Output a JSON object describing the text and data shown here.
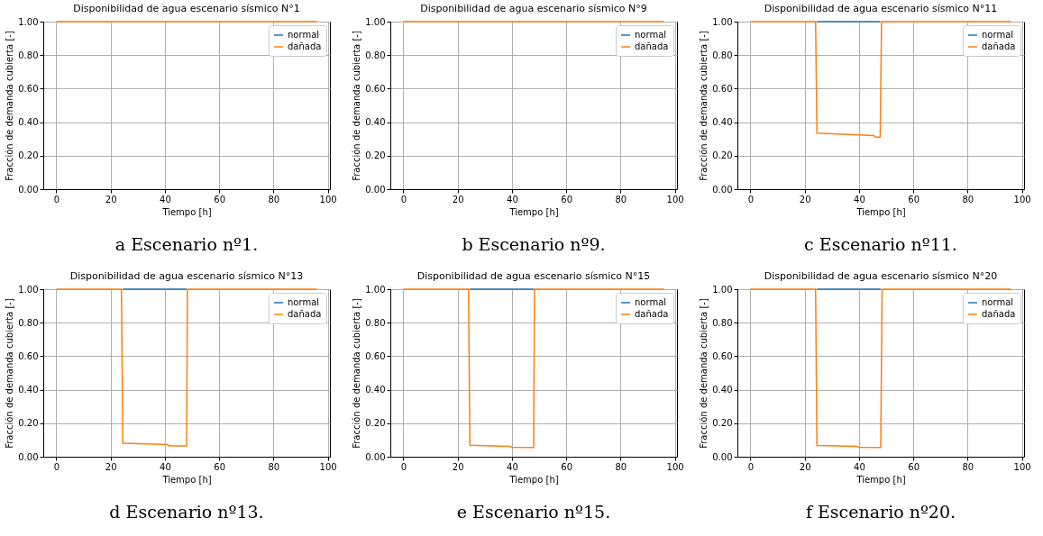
{
  "chart_data": [
    {
      "type": "line",
      "title": "Disponibilidad de agua escenario sísmico N°1",
      "xlabel": "Tiempo [h]",
      "ylabel": "Fracción de demanda cubierta [-]",
      "annotations": [
        "a Escenario nº1."
      ],
      "xlim": [
        -4.8,
        100.8
      ],
      "ylim": [
        0,
        1
      ],
      "xticks": [
        0,
        20,
        40,
        60,
        80,
        100
      ],
      "yticks": [
        {
          "value": 0,
          "label": "0.00"
        },
        {
          "value": 0.2,
          "label": "0.20"
        },
        {
          "value": 0.4,
          "label": "0.40"
        },
        {
          "value": 0.6,
          "label": "0.60"
        },
        {
          "value": 0.8,
          "label": "0.80"
        },
        {
          "value": 1,
          "label": "1.00"
        }
      ],
      "grid": true,
      "legend": "top right",
      "line_style": "solid",
      "series": [
        {
          "name": "normal",
          "color": "#1f77b4",
          "values": [
            null,
            null
          ]
        },
        {
          "name": "dañada",
          "color": "#ff7f0e",
          "x": [
            0,
            96
          ],
          "values": [
            1,
            1
          ]
        }
      ]
    },
    {
      "type": "line",
      "title": "Disponibilidad de agua escenario sísmico N°9",
      "xlabel": "Tiempo [h]",
      "ylabel": "Fracción de demanda cubierta [-]",
      "annotations": [
        "b Escenario nº9."
      ],
      "xlim": [
        -4.8,
        100.8
      ],
      "ylim": [
        0,
        1
      ],
      "xticks": [
        0,
        20,
        40,
        60,
        80,
        100
      ],
      "yticks": [
        {
          "value": 0,
          "label": "0.00"
        },
        {
          "value": 0.2,
          "label": "0.20"
        },
        {
          "value": 0.4,
          "label": "0.40"
        },
        {
          "value": 0.6,
          "label": "0.60"
        },
        {
          "value": 0.8,
          "label": "0.80"
        },
        {
          "value": 1,
          "label": "1.00"
        }
      ],
      "grid": true,
      "legend": "top right",
      "line_style": "solid",
      "series": [
        {
          "name": "normal",
          "color": "#1f77b4",
          "values": [
            null,
            null
          ]
        },
        {
          "name": "dañada",
          "color": "#ff7f0e",
          "x": [
            0,
            96
          ],
          "values": [
            1,
            1
          ]
        }
      ]
    },
    {
      "type": "line",
      "title": "Disponibilidad de agua escenario sísmico N°11",
      "xlabel": "Tiempo [h]",
      "ylabel": "Fracción de demanda cubierta [-]",
      "annotations": [
        "c Escenario nº11."
      ],
      "xlim": [
        -4.8,
        100.8
      ],
      "ylim": [
        0,
        1
      ],
      "xticks": [
        0,
        20,
        40,
        60,
        80,
        100
      ],
      "yticks": [
        {
          "value": 0,
          "label": "0.00"
        },
        {
          "value": 0.2,
          "label": "0.20"
        },
        {
          "value": 0.4,
          "label": "0.40"
        },
        {
          "value": 0.6,
          "label": "0.60"
        },
        {
          "value": 0.8,
          "label": "0.80"
        },
        {
          "value": 1,
          "label": "1.00"
        }
      ],
      "grid": true,
      "legend": "top right",
      "line_style": "solid",
      "series": [
        {
          "name": "normal",
          "color": "#1f77b4",
          "x": [
            24.5,
            47.8
          ],
          "values": [
            1,
            1
          ]
        },
        {
          "name": "dañada",
          "color": "#ff7f0e",
          "x": [
            0,
            24,
            24.5,
            45.5,
            46,
            47.8,
            48.3,
            96
          ],
          "values": [
            1,
            1,
            0.335,
            0.32,
            0.31,
            0.31,
            1,
            1
          ]
        }
      ]
    },
    {
      "type": "line",
      "title": "Disponibilidad de agua escenario sísmico N°13",
      "xlabel": "Tiempo [h]",
      "ylabel": "Fracción de demanda cubierta [-]",
      "annotations": [
        "d Escenario nº13."
      ],
      "xlim": [
        -4.8,
        100.8
      ],
      "ylim": [
        0,
        1
      ],
      "xticks": [
        0,
        20,
        40,
        60,
        80,
        100
      ],
      "yticks": [
        {
          "value": 0,
          "label": "0.00"
        },
        {
          "value": 0.2,
          "label": "0.20"
        },
        {
          "value": 0.4,
          "label": "0.40"
        },
        {
          "value": 0.6,
          "label": "0.60"
        },
        {
          "value": 0.8,
          "label": "0.80"
        },
        {
          "value": 1,
          "label": "1.00"
        }
      ],
      "grid": true,
      "legend": "top right",
      "line_style": "solid",
      "series": [
        {
          "name": "normal",
          "color": "#1f77b4",
          "x": [
            24.5,
            48
          ],
          "values": [
            1,
            1
          ]
        },
        {
          "name": "dañada",
          "color": "#ff7f0e",
          "x": [
            0,
            24,
            24.5,
            41,
            41.5,
            48,
            48.3,
            96
          ],
          "values": [
            1,
            1,
            0.08,
            0.072,
            0.065,
            0.065,
            1,
            1
          ]
        }
      ]
    },
    {
      "type": "line",
      "title": "Disponibilidad de agua escenario sísmico N°15",
      "xlabel": "Tiempo [h]",
      "ylabel": "Fracción de demanda cubierta [-]",
      "annotations": [
        "e Escenario nº15."
      ],
      "xlim": [
        -4.8,
        100.8
      ],
      "ylim": [
        0,
        1
      ],
      "xticks": [
        0,
        20,
        40,
        60,
        80,
        100
      ],
      "yticks": [
        {
          "value": 0,
          "label": "0.00"
        },
        {
          "value": 0.2,
          "label": "0.20"
        },
        {
          "value": 0.4,
          "label": "0.40"
        },
        {
          "value": 0.6,
          "label": "0.60"
        },
        {
          "value": 0.8,
          "label": "0.80"
        },
        {
          "value": 1,
          "label": "1.00"
        }
      ],
      "grid": true,
      "legend": "top right",
      "line_style": "solid",
      "series": [
        {
          "name": "normal",
          "color": "#1f77b4",
          "x": [
            24.5,
            48
          ],
          "values": [
            1,
            1
          ]
        },
        {
          "name": "dañada",
          "color": "#ff7f0e",
          "x": [
            0,
            24,
            24.5,
            39,
            40,
            48,
            48.3,
            96
          ],
          "values": [
            1,
            1,
            0.068,
            0.062,
            0.057,
            0.055,
            1,
            1
          ]
        }
      ]
    },
    {
      "type": "line",
      "title": "Disponibilidad de agua escenario sísmico N°20",
      "xlabel": "Tiempo [h]",
      "ylabel": "Fracción de demanda cubierta [-]",
      "annotations": [
        "f Escenario nº20."
      ],
      "xlim": [
        -4.8,
        100.8
      ],
      "ylim": [
        0,
        1
      ],
      "xticks": [
        0,
        20,
        40,
        60,
        80,
        100
      ],
      "yticks": [
        {
          "value": 0,
          "label": "0.00"
        },
        {
          "value": 0.2,
          "label": "0.20"
        },
        {
          "value": 0.4,
          "label": "0.40"
        },
        {
          "value": 0.6,
          "label": "0.60"
        },
        {
          "value": 0.8,
          "label": "0.80"
        },
        {
          "value": 1,
          "label": "1.00"
        }
      ],
      "grid": true,
      "legend": "top right",
      "line_style": "solid",
      "series": [
        {
          "name": "normal",
          "color": "#1f77b4",
          "x": [
            24.5,
            48
          ],
          "values": [
            1,
            1
          ]
        },
        {
          "name": "dañada",
          "color": "#ff7f0e",
          "x": [
            0,
            24,
            24.5,
            39,
            40,
            48,
            48.5,
            96
          ],
          "values": [
            1,
            1,
            0.067,
            0.062,
            0.057,
            0.055,
            1,
            1
          ]
        }
      ]
    }
  ]
}
